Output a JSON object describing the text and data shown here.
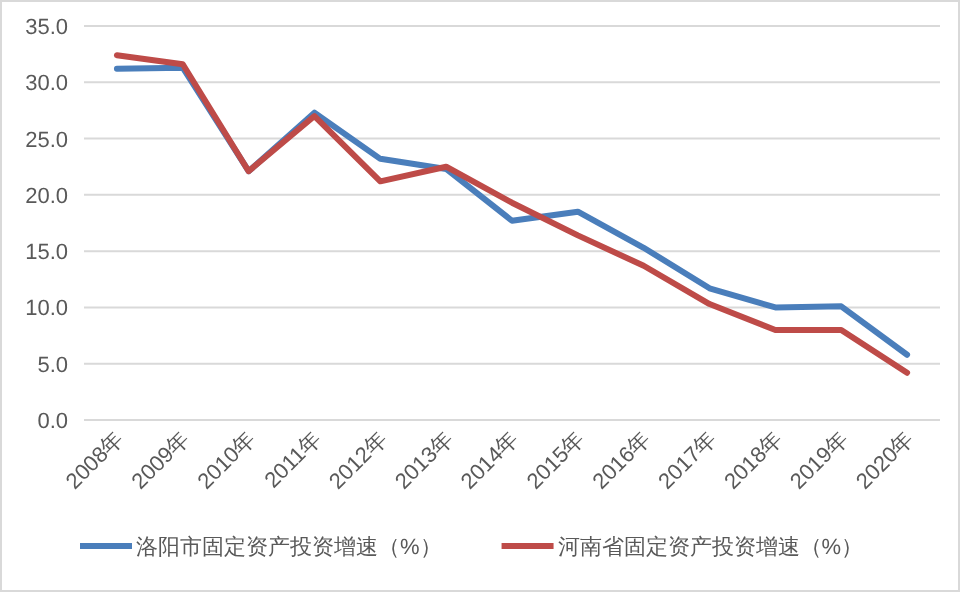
{
  "chart_data": {
    "type": "line",
    "categories": [
      "2008年",
      "2009年",
      "2010年",
      "2011年",
      "2012年",
      "2013年",
      "2014年",
      "2015年",
      "2016年",
      "2017年",
      "2018年",
      "2019年",
      "2020年"
    ],
    "series": [
      {
        "name": "洛阳市固定资产投资增速（%）",
        "color": "#4a7ebb",
        "values": [
          31.2,
          31.3,
          22.1,
          27.3,
          23.2,
          22.3,
          17.7,
          18.5,
          15.3,
          11.7,
          10.0,
          10.1,
          5.8
        ]
      },
      {
        "name": "河南省固定资产投资增速（%）",
        "color": "#be4b48",
        "values": [
          32.4,
          31.6,
          22.1,
          27.0,
          21.2,
          22.5,
          19.3,
          16.4,
          13.7,
          10.3,
          8.0,
          8.0,
          4.2
        ]
      }
    ],
    "ylim": [
      0,
      35
    ],
    "yticks": [
      {
        "value": 0,
        "label": "0.0"
      },
      {
        "value": 5,
        "label": "5.0"
      },
      {
        "value": 10,
        "label": "10.0"
      },
      {
        "value": 15,
        "label": "15.0"
      },
      {
        "value": 20,
        "label": "20.0"
      },
      {
        "value": 25,
        "label": "25.0"
      },
      {
        "value": 30,
        "label": "30.0"
      },
      {
        "value": 35,
        "label": "35.0"
      }
    ],
    "grid": "y",
    "legend": "bottom",
    "marker": "none",
    "line_style": "solid"
  }
}
